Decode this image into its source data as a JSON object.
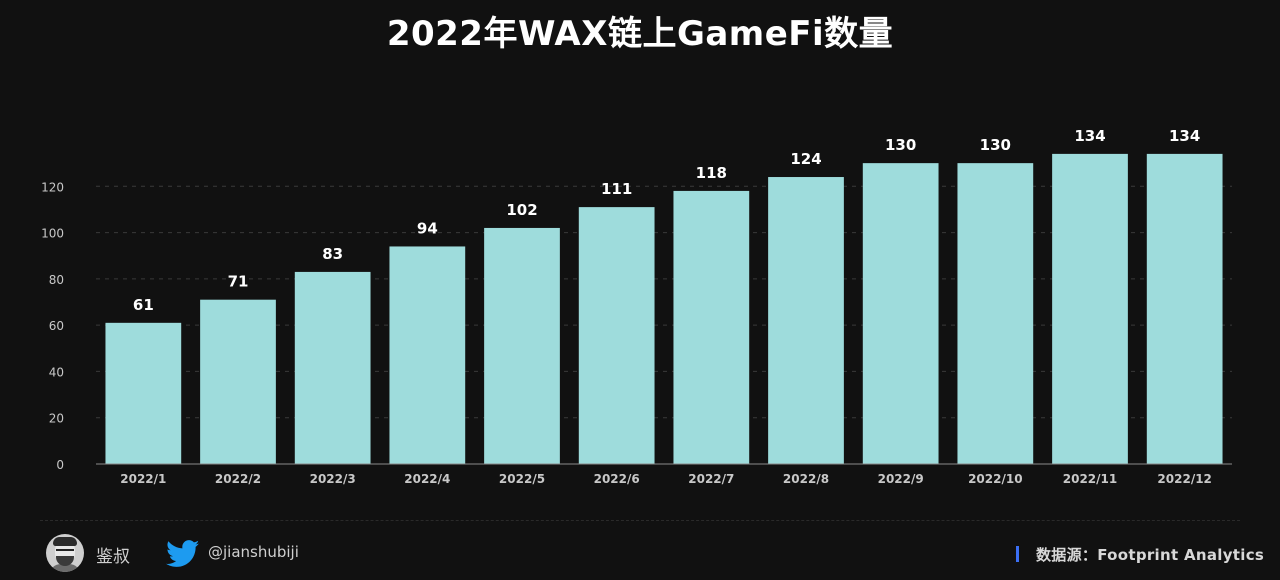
{
  "header": {
    "title": "2022年WAX链上GameFi数量"
  },
  "chart_data": {
    "type": "bar",
    "title": "2022年WAX链上GameFi数量",
    "xlabel": "",
    "ylabel": "",
    "categories": [
      "2022/1",
      "2022/2",
      "2022/3",
      "2022/4",
      "2022/5",
      "2022/6",
      "2022/7",
      "2022/8",
      "2022/9",
      "2022/10",
      "2022/11",
      "2022/12"
    ],
    "values": [
      61,
      71,
      83,
      94,
      102,
      111,
      118,
      124,
      130,
      130,
      134,
      134
    ],
    "yticks": [
      0,
      20,
      40,
      60,
      80,
      100,
      120
    ],
    "ylim": [
      0,
      140
    ],
    "grid": true,
    "data_labels": true,
    "colors": {
      "bar": "#9edcdc",
      "background": "#111111",
      "grid": "#3a3a3a",
      "axis": "#8a8a8a"
    }
  },
  "footer": {
    "author": "鉴叔",
    "handle": "@jianshubiji",
    "source": "数据源：Footprint  Analytics",
    "icons": {
      "avatar": "avatar-icon",
      "twitter": "twitter-icon"
    },
    "colors": {
      "twitter": "#1d9bf0",
      "source_bar": "#3b6ff5"
    }
  }
}
